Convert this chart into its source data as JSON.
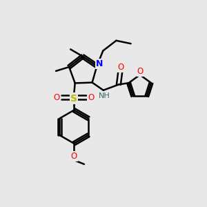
{
  "bg_color": "#e8e8e8",
  "line_color": "#000000",
  "bond_width": 1.8,
  "figsize": [
    3.0,
    3.0
  ],
  "dpi": 100,
  "xlim": [
    0,
    10
  ],
  "ylim": [
    0,
    10
  ]
}
